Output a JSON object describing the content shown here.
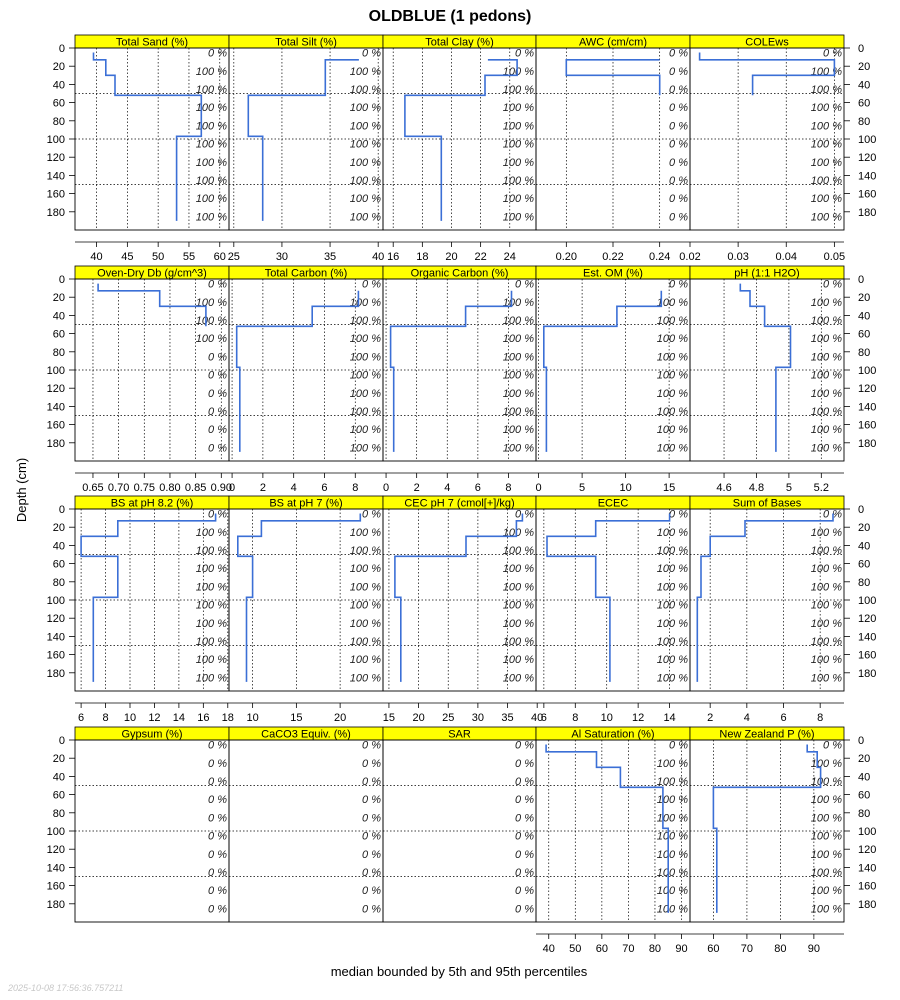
{
  "chart_data": {
    "type": "line",
    "title": "OLDBLUE (1 pedons)",
    "xlabel": "median bounded by 5th and 95th percentiles",
    "ylabel": "Depth (cm)",
    "timestamp": "2025-10-08 17:56:36.757211",
    "depth_range": [
      0,
      200
    ],
    "depth_ticks": [
      0,
      20,
      40,
      60,
      80,
      100,
      120,
      140,
      160,
      180
    ],
    "grid": true,
    "strip_color": "#ffff00",
    "line_color": "#3b6fd6",
    "pct_labels": [
      "0 %",
      "100 %",
      "100 %",
      "100 %",
      "100 %",
      "100 %",
      "100 %",
      "100 %",
      "100 %",
      "100 %"
    ],
    "zero_labels": [
      "0 %",
      "0 %",
      "0 %",
      "0 %",
      "0 %",
      "0 %",
      "0 %",
      "0 %",
      "0 %",
      "0 %"
    ],
    "panels": [
      {
        "title": "Total Sand (%)",
        "xlim": [
          36.5,
          61.5
        ],
        "ticks": [
          40,
          45,
          50,
          55,
          60
        ],
        "profile": [
          [
            39.5,
            5
          ],
          [
            39.5,
            13
          ],
          [
            41.5,
            13
          ],
          [
            41.5,
            30
          ],
          [
            43,
            30
          ],
          [
            43,
            52
          ],
          [
            57,
            52
          ],
          [
            57,
            97
          ],
          [
            53,
            97
          ],
          [
            53,
            190
          ]
        ],
        "pct": "standard"
      },
      {
        "title": "Total Silt (%)",
        "xlim": [
          24.5,
          40.5
        ],
        "ticks": [
          25,
          30,
          35,
          40
        ],
        "profile": [
          [
            38,
            13
          ],
          [
            34.5,
            13
          ],
          [
            34.5,
            52
          ],
          [
            26.5,
            52
          ],
          [
            26.5,
            97
          ],
          [
            28,
            97
          ],
          [
            28,
            190
          ]
        ],
        "pct": "standard"
      },
      {
        "title": "Total Clay (%)",
        "xlim": [
          15.3,
          25.8
        ],
        "ticks": [
          16,
          18,
          20,
          22,
          24
        ],
        "profile": [
          [
            22.5,
            13
          ],
          [
            24.5,
            13
          ],
          [
            24.5,
            30
          ],
          [
            22.3,
            30
          ],
          [
            22.3,
            52
          ],
          [
            16.8,
            52
          ],
          [
            16.8,
            97
          ],
          [
            19.3,
            97
          ],
          [
            19.3,
            190
          ]
        ],
        "pct": "standard"
      },
      {
        "title": "AWC (cm/cm)",
        "xlim": [
          0.187,
          0.253
        ],
        "ticks": [
          0.2,
          0.22,
          0.24
        ],
        "profile": [
          [
            0.24,
            13
          ],
          [
            0.2,
            13
          ],
          [
            0.2,
            30
          ],
          [
            0.24,
            30
          ],
          [
            0.24,
            52
          ]
        ],
        "pct": "zero"
      },
      {
        "title": "COLEws",
        "xlim": [
          0.02,
          0.052
        ],
        "ticks": [
          0.02,
          0.03,
          0.04,
          0.05
        ],
        "profile": [
          [
            0.022,
            5
          ],
          [
            0.022,
            13
          ],
          [
            0.05,
            13
          ],
          [
            0.05,
            30
          ],
          [
            0.033,
            30
          ],
          [
            0.033,
            52
          ]
        ],
        "pct": "standard"
      },
      {
        "title": "Oven-Dry Db (g/cm^3)",
        "xlim": [
          0.615,
          0.915
        ],
        "ticks": [
          0.65,
          0.7,
          0.75,
          0.8,
          0.85,
          0.9
        ],
        "profile": [
          [
            0.66,
            5
          ],
          [
            0.66,
            13
          ],
          [
            0.78,
            13
          ],
          [
            0.78,
            30
          ],
          [
            0.87,
            30
          ],
          [
            0.87,
            52
          ]
        ],
        "pct": "db"
      },
      {
        "title": "Total Carbon (%)",
        "xlim": [
          -0.2,
          9.8
        ],
        "ticks": [
          0,
          2,
          4,
          6,
          8
        ],
        "profile": [
          [
            8.2,
            13
          ],
          [
            8.2,
            30
          ],
          [
            5.2,
            30
          ],
          [
            5.2,
            52
          ],
          [
            0.3,
            52
          ],
          [
            0.3,
            97
          ],
          [
            0.5,
            97
          ],
          [
            0.5,
            190
          ]
        ],
        "pct": "standard"
      },
      {
        "title": "Organic Carbon (%)",
        "xlim": [
          -0.2,
          9.8
        ],
        "ticks": [
          0,
          2,
          4,
          6,
          8
        ],
        "profile": [
          [
            8.2,
            13
          ],
          [
            8.2,
            30
          ],
          [
            5.2,
            30
          ],
          [
            5.2,
            52
          ],
          [
            0.3,
            52
          ],
          [
            0.3,
            97
          ],
          [
            0.5,
            97
          ],
          [
            0.5,
            190
          ]
        ],
        "pct": "standard"
      },
      {
        "title": "Est. OM (%)",
        "xlim": [
          -0.3,
          17.4
        ],
        "ticks": [
          0,
          5,
          10,
          15
        ],
        "profile": [
          [
            14.1,
            13
          ],
          [
            14.1,
            30
          ],
          [
            9,
            30
          ],
          [
            9,
            52
          ],
          [
            0.6,
            52
          ],
          [
            0.6,
            97
          ],
          [
            0.9,
            97
          ],
          [
            0.9,
            190
          ]
        ],
        "pct": "standard"
      },
      {
        "title": "pH (1:1 H2O)",
        "xlim": [
          4.39,
          5.34
        ],
        "ticks": [
          4.6,
          4.8,
          5.0,
          5.2
        ],
        "profile": [
          [
            4.7,
            5
          ],
          [
            4.7,
            13
          ],
          [
            4.76,
            13
          ],
          [
            4.76,
            30
          ],
          [
            4.85,
            30
          ],
          [
            4.85,
            52
          ],
          [
            5.01,
            52
          ],
          [
            5.01,
            97
          ],
          [
            4.92,
            97
          ],
          [
            4.92,
            190
          ]
        ],
        "pct": "standard"
      },
      {
        "title": "BS at pH 8.2 (%)",
        "xlim": [
          5.5,
          18.1
        ],
        "ticks": [
          6,
          8,
          10,
          12,
          14,
          16,
          18
        ],
        "profile": [
          [
            17,
            5
          ],
          [
            17,
            13
          ],
          [
            9,
            13
          ],
          [
            9,
            30
          ],
          [
            6,
            30
          ],
          [
            6,
            52
          ],
          [
            9,
            52
          ],
          [
            9,
            97
          ],
          [
            7,
            97
          ],
          [
            7,
            190
          ]
        ],
        "pct": "standard"
      },
      {
        "title": "BS at pH 7 (%)",
        "xlim": [
          7.3,
          24.9
        ],
        "ticks": [
          10,
          15,
          20
        ],
        "profile": [
          [
            22.3,
            5
          ],
          [
            22.3,
            13
          ],
          [
            11,
            13
          ],
          [
            11,
            30
          ],
          [
            8.3,
            30
          ],
          [
            8.3,
            52
          ],
          [
            10,
            52
          ],
          [
            10,
            97
          ],
          [
            9.3,
            97
          ],
          [
            9.3,
            190
          ]
        ],
        "pct": "standard"
      },
      {
        "title": "CEC pH 7 (cmol[+]/kg)",
        "xlim": [
          14.0,
          39.8
        ],
        "ticks": [
          15,
          20,
          25,
          30,
          35,
          40
        ],
        "profile": [
          [
            37.5,
            5
          ],
          [
            37.5,
            13
          ],
          [
            36.5,
            13
          ],
          [
            36.5,
            30
          ],
          [
            28,
            30
          ],
          [
            28,
            52
          ],
          [
            16,
            52
          ],
          [
            16,
            97
          ],
          [
            17,
            97
          ],
          [
            17,
            190
          ]
        ],
        "pct": "standard"
      },
      {
        "title": "ECEC",
        "xlim": [
          5.5,
          15.3
        ],
        "ticks": [
          6,
          8,
          10,
          12,
          14
        ],
        "profile": [
          [
            14,
            5
          ],
          [
            14,
            13
          ],
          [
            9.3,
            13
          ],
          [
            9.3,
            30
          ],
          [
            6.2,
            30
          ],
          [
            6.2,
            52
          ],
          [
            9.3,
            52
          ],
          [
            9.3,
            97
          ],
          [
            10.2,
            97
          ],
          [
            10.2,
            190
          ]
        ],
        "pct": "standard"
      },
      {
        "title": "Sum of Bases",
        "xlim": [
          0.9,
          9.3
        ],
        "ticks": [
          2,
          4,
          6,
          8
        ],
        "profile": [
          [
            8.7,
            5
          ],
          [
            8.7,
            13
          ],
          [
            3.9,
            13
          ],
          [
            3.9,
            30
          ],
          [
            2,
            30
          ],
          [
            2,
            52
          ],
          [
            1.5,
            52
          ],
          [
            1.5,
            97
          ],
          [
            1.3,
            97
          ],
          [
            1.3,
            190
          ]
        ],
        "pct": "standard"
      },
      {
        "title": "Gypsum (%)",
        "xlim": [
          0,
          1
        ],
        "ticks": [],
        "profile": [],
        "pct": "zero"
      },
      {
        "title": "CaCO3 Equiv. (%)",
        "xlim": [
          0,
          1
        ],
        "ticks": [],
        "profile": [],
        "pct": "zero"
      },
      {
        "title": "SAR",
        "xlim": [
          0,
          1
        ],
        "ticks": [],
        "profile": [],
        "pct": "zero"
      },
      {
        "title": "Al Saturation (%)",
        "xlim": [
          35.2,
          93.2
        ],
        "ticks": [
          40,
          50,
          60,
          70,
          80,
          90
        ],
        "profile": [
          [
            39,
            5
          ],
          [
            39,
            13
          ],
          [
            58,
            13
          ],
          [
            58,
            30
          ],
          [
            67,
            30
          ],
          [
            67,
            52
          ],
          [
            83,
            52
          ],
          [
            83,
            97
          ],
          [
            85,
            97
          ],
          [
            85,
            190
          ]
        ],
        "pct": "standard"
      },
      {
        "title": "New Zealand P (%)",
        "xlim": [
          53.0,
          99.0
        ],
        "ticks": [
          60,
          70,
          80,
          90
        ],
        "profile": [
          [
            88,
            5
          ],
          [
            88,
            13
          ],
          [
            91,
            13
          ],
          [
            91,
            30
          ],
          [
            92,
            30
          ],
          [
            92,
            52
          ],
          [
            60,
            52
          ],
          [
            60,
            97
          ],
          [
            61,
            97
          ],
          [
            61,
            190
          ]
        ],
        "pct": "standard"
      }
    ],
    "bottom_axis_rows": {
      "0": [
        0,
        1,
        2,
        3,
        4
      ],
      "1": [
        0,
        1,
        2,
        3,
        4
      ],
      "2": [
        0,
        1,
        2,
        3,
        4
      ],
      "3": [
        3,
        4
      ]
    }
  }
}
